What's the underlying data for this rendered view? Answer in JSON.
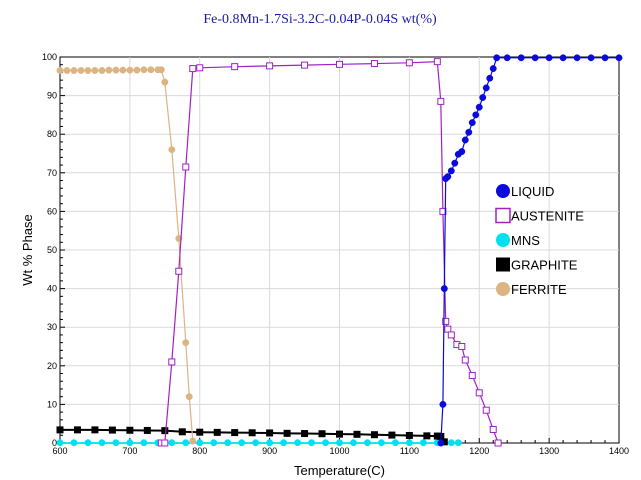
{
  "chart_data": {
    "type": "line",
    "title": "Fe-0.8Mn-1.7Si-3.2C-0.04P-0.04S wt(%)",
    "xlabel": "Temperature(C)",
    "ylabel": "Wt % Phase",
    "xlim": [
      600,
      1400
    ],
    "ylim": [
      0,
      100
    ],
    "xticks": [
      600,
      700,
      800,
      900,
      1000,
      1100,
      1200,
      1300,
      1400
    ],
    "yticks": [
      0,
      10,
      20,
      30,
      40,
      50,
      60,
      70,
      80,
      90,
      100
    ],
    "grid": true,
    "legend_position": "center-right",
    "series": [
      {
        "name": "LIQUID",
        "color": "#0a0adc",
        "marker": "filled-circle",
        "x": [
          1145,
          1148,
          1150,
          1152,
          1155,
          1160,
          1165,
          1170,
          1175,
          1180,
          1185,
          1190,
          1195,
          1200,
          1205,
          1210,
          1215,
          1220,
          1225,
          1240,
          1260,
          1280,
          1300,
          1320,
          1340,
          1360,
          1380,
          1400
        ],
        "y": [
          0,
          10,
          40,
          68.5,
          69,
          70.5,
          72.5,
          74.8,
          75.5,
          78.5,
          80.5,
          83,
          85,
          87,
          89.5,
          92,
          94.5,
          97,
          99.8,
          99.8,
          99.8,
          99.8,
          99.8,
          99.8,
          99.8,
          99.8,
          99.8,
          99.8
        ]
      },
      {
        "name": "AUSTENITE",
        "color": "#a020c8",
        "marker": "open-square",
        "x": [
          745,
          750,
          760,
          770,
          780,
          790,
          800,
          850,
          900,
          950,
          1000,
          1050,
          1100,
          1140,
          1145,
          1148,
          1152,
          1155,
          1160,
          1168,
          1175,
          1180,
          1190,
          1200,
          1210,
          1220,
          1227
        ],
        "y": [
          0,
          0,
          21,
          44.5,
          71.5,
          97,
          97.2,
          97.5,
          97.7,
          97.9,
          98.1,
          98.3,
          98.5,
          98.8,
          88.5,
          60,
          31.5,
          29.5,
          28,
          25.5,
          25,
          21.5,
          17.5,
          13,
          8.5,
          3.5,
          0
        ]
      },
      {
        "name": "MNS",
        "color": "#00e1f0",
        "marker": "filled-circle",
        "x": [
          600,
          620,
          640,
          660,
          680,
          700,
          720,
          740,
          760,
          780,
          800,
          820,
          840,
          860,
          880,
          900,
          920,
          940,
          960,
          980,
          1000,
          1020,
          1040,
          1060,
          1080,
          1100,
          1120,
          1140,
          1160,
          1170
        ],
        "y": [
          0.08,
          0.08,
          0.08,
          0.08,
          0.08,
          0.08,
          0.08,
          0.08,
          0.08,
          0.08,
          0.08,
          0.08,
          0.08,
          0.08,
          0.08,
          0.08,
          0.08,
          0.08,
          0.08,
          0.08,
          0.08,
          0.08,
          0.08,
          0.08,
          0.08,
          0.08,
          0.08,
          0.08,
          0.08,
          0.08
        ]
      },
      {
        "name": "GRAPHITE",
        "color": "#000000",
        "marker": "filled-square",
        "x": [
          600,
          625,
          650,
          675,
          700,
          725,
          750,
          775,
          800,
          825,
          850,
          875,
          900,
          925,
          950,
          975,
          1000,
          1025,
          1050,
          1075,
          1100,
          1125,
          1140,
          1145,
          1150
        ],
        "y": [
          3.4,
          3.4,
          3.4,
          3.35,
          3.3,
          3.25,
          3.2,
          2.9,
          2.8,
          2.75,
          2.7,
          2.65,
          2.6,
          2.5,
          2.45,
          2.4,
          2.3,
          2.25,
          2.15,
          2.05,
          1.95,
          1.85,
          1.8,
          1.7,
          0.3
        ]
      },
      {
        "name": "FERRITE",
        "color": "#dcb482",
        "marker": "filled-circle",
        "x": [
          600,
          610,
          620,
          630,
          640,
          650,
          660,
          670,
          680,
          690,
          700,
          710,
          720,
          730,
          740,
          745,
          750,
          760,
          770,
          780,
          785,
          790
        ],
        "y": [
          96.5,
          96.5,
          96.5,
          96.5,
          96.5,
          96.5,
          96.5,
          96.6,
          96.6,
          96.6,
          96.6,
          96.6,
          96.7,
          96.7,
          96.7,
          96.7,
          93.5,
          76,
          53,
          26,
          12,
          0.5
        ]
      }
    ]
  }
}
